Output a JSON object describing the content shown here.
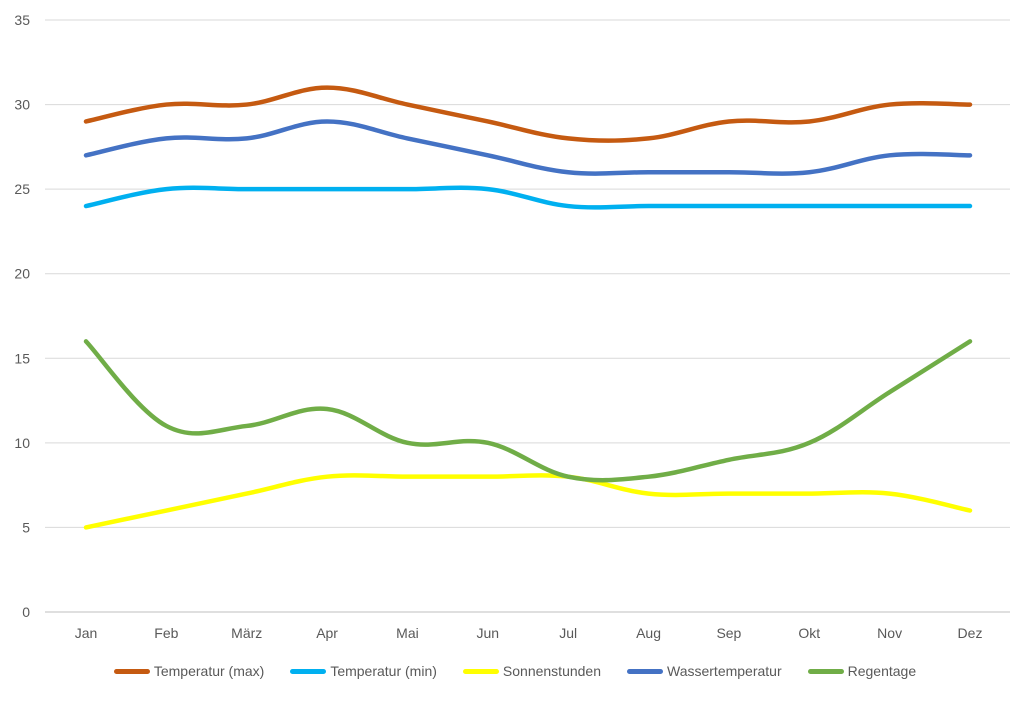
{
  "chart_data": {
    "type": "line",
    "title": "",
    "xlabel": "",
    "ylabel": "",
    "categories": [
      "Jan",
      "Feb",
      "März",
      "Apr",
      "Mai",
      "Jun",
      "Jul",
      "Aug",
      "Sep",
      "Okt",
      "Nov",
      "Dez"
    ],
    "ylim": [
      0,
      35
    ],
    "yticks": [
      "0",
      "5",
      "10",
      "15",
      "20",
      "25",
      "30",
      "35"
    ],
    "grid": true,
    "legend_position": "bottom",
    "series": [
      {
        "name": "Temperatur (max)",
        "color": "#C55A11",
        "values": [
          29,
          30,
          30,
          31,
          30,
          29,
          28,
          28,
          29,
          29,
          30,
          30
        ]
      },
      {
        "name": "Temperatur (min)",
        "color": "#00B0F0",
        "values": [
          24,
          25,
          25,
          25,
          25,
          25,
          24,
          24,
          24,
          24,
          24,
          24
        ]
      },
      {
        "name": "Sonnenstunden",
        "color": "#FFFF00",
        "values": [
          5,
          6,
          7,
          8,
          8,
          8,
          8,
          7,
          7,
          7,
          7,
          6
        ]
      },
      {
        "name": "Wassertemperatur",
        "color": "#4472C4",
        "values": [
          27,
          28,
          28,
          29,
          28,
          27,
          26,
          26,
          26,
          26,
          27,
          27
        ]
      },
      {
        "name": "Regentage",
        "color": "#70AD47",
        "values": [
          16,
          11,
          11,
          12,
          10,
          10,
          8,
          8,
          9,
          10,
          13,
          16
        ]
      }
    ]
  }
}
